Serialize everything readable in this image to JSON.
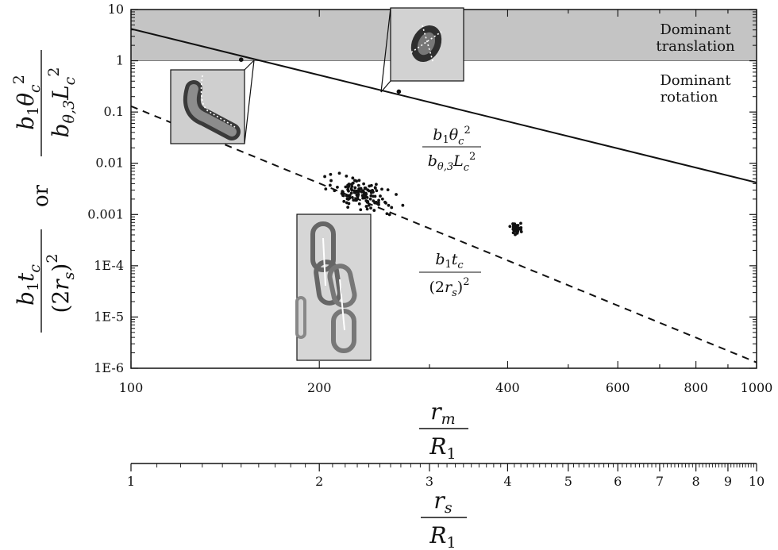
{
  "chart_data": {
    "type": "scatter",
    "x_axis": {
      "scale": "log",
      "range": [
        100,
        1000
      ],
      "tick_labels": [
        "100",
        "200",
        "400",
        "600",
        "800",
        "1000"
      ],
      "tick_values": [
        100,
        200,
        400,
        600,
        800,
        1000
      ],
      "label_numerator": "r_m",
      "label_denominator": "R_1"
    },
    "x2_axis": {
      "scale": "log",
      "range": [
        1,
        10
      ],
      "tick_labels": [
        "1",
        "2",
        "3",
        "4",
        "5",
        "6",
        "7",
        "8",
        "9",
        "10"
      ],
      "tick_values": [
        1,
        2,
        3,
        4,
        5,
        6,
        7,
        8,
        9,
        10
      ],
      "label_numerator": "r_s",
      "label_denominator": "R_1"
    },
    "y_axis": {
      "scale": "log",
      "range": [
        1e-06,
        10
      ],
      "tick_labels": [
        "1E-6",
        "1E-5",
        "1E-4",
        "0.001",
        "0.01",
        "0.1",
        "1",
        "10"
      ],
      "tick_values": [
        1e-06,
        1e-05,
        0.0001,
        0.001,
        0.01,
        0.1,
        1,
        10
      ],
      "label_top": "b1 θc² / (bθ,3 Lc²)",
      "label_connector": "or",
      "label_bottom": "b1 tc / (2rs)²"
    },
    "shaded_band": {
      "y_from": 1,
      "y_to": 10,
      "color": "#c4c4c4"
    },
    "region_labels": {
      "upper_line1": "Dominant",
      "upper_line2": "translation",
      "lower_line1": "Dominant",
      "lower_line2": "rotation"
    },
    "series": [
      {
        "name": "b1 θc² / (bθ,3 Lc²)",
        "style": "solid",
        "points": [
          [
            100,
            4.2
          ],
          [
            1000,
            0.0042
          ]
        ]
      },
      {
        "name": "b1 tc / (2rs)²",
        "style": "dashed",
        "points": [
          [
            100,
            0.13
          ],
          [
            1000,
            1.3e-06
          ]
        ]
      }
    ],
    "line_labels": {
      "solid_numerator": "b1θc²",
      "solid_denominator": "bθ,3Lc²",
      "dashed_numerator": "b1tc",
      "dashed_denominator": "(2rs)²"
    },
    "marked_points": [
      {
        "x": 150,
        "y": 1.05
      },
      {
        "x": 268,
        "y": 0.25
      }
    ],
    "scatter_clusters": [
      {
        "x_center": 233,
        "y_center": 0.0025,
        "x_spread": 0.075,
        "y_spread": 0.38,
        "count": 130
      },
      {
        "x_center": 412,
        "y_center": 0.00055,
        "x_spread": 0.012,
        "y_spread": 0.14,
        "count": 45
      }
    ],
    "insets": [
      {
        "name": "inset-bent-rod",
        "anchor": {
          "x": 150,
          "y": 1.05
        }
      },
      {
        "name": "inset-compact-cell",
        "anchor": {
          "x": 268,
          "y": 0.25
        }
      },
      {
        "name": "inset-rods",
        "anchor": null
      }
    ]
  }
}
